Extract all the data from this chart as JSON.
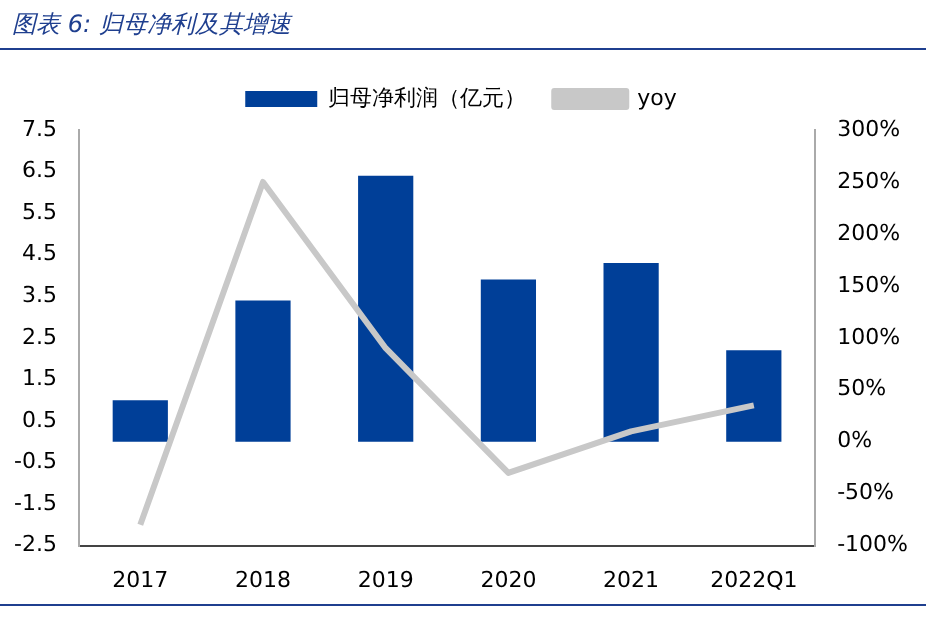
{
  "chart_data": {
    "type": "bar",
    "title": "图表 6: 归母净利及其增速",
    "categories": [
      "2017",
      "2018",
      "2019",
      "2020",
      "2021",
      "2022Q1"
    ],
    "series": [
      {
        "name": "归母净利润（亿元）",
        "type": "bar",
        "color": "#003f98",
        "values": [
          1.0,
          3.4,
          6.4,
          3.9,
          4.3,
          2.2
        ]
      },
      {
        "name": "yoy",
        "type": "line",
        "axis": "y2",
        "color": "#c8c8c8",
        "values": [
          -80,
          250,
          90,
          -30,
          10,
          35
        ]
      }
    ],
    "ylim": [
      -2.5,
      7.5
    ],
    "yticks": [
      -2.5,
      -1.5,
      -0.5,
      0.5,
      1.5,
      2.5,
      3.5,
      4.5,
      5.5,
      6.5,
      7.5
    ],
    "y2lim": [
      -100,
      300
    ],
    "y2ticks": [
      {
        "value": -100,
        "label": "-100%"
      },
      {
        "value": -50,
        "label": "-50%"
      },
      {
        "value": 0,
        "label": "0%"
      },
      {
        "value": 50,
        "label": "50%"
      },
      {
        "value": 100,
        "label": "100%"
      },
      {
        "value": 150,
        "label": "150%"
      },
      {
        "value": 200,
        "label": "200%"
      },
      {
        "value": 250,
        "label": "250%"
      },
      {
        "value": 300,
        "label": "300%"
      }
    ],
    "grid": false,
    "legend": "top",
    "marker": "none"
  }
}
